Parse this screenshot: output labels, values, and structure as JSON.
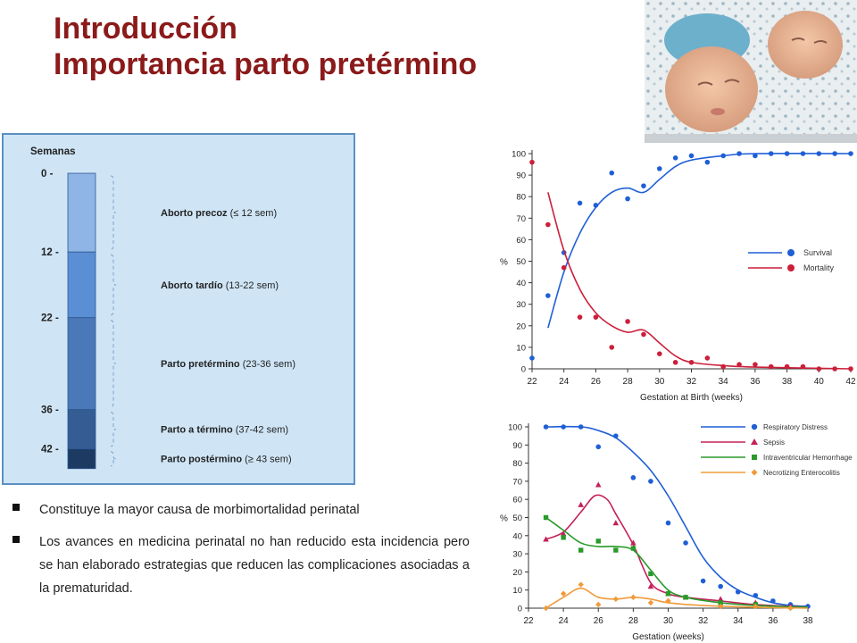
{
  "slide": {
    "title_line1": "Introducción",
    "title_line2": "Importancia parto pretérmino",
    "bullets": [
      "Constituye la mayor causa de morbimortalidad perinatal",
      "Los avances en medicina perinatal no han reducido esta incidencia pero se han elaborado estrategias que reducen las complicaciones asociadas a la prematuridad."
    ]
  },
  "timeline": {
    "header": "Semanas",
    "ticks": [
      {
        "label": "0  -",
        "week": 0
      },
      {
        "label": "12 -",
        "week": 12
      },
      {
        "label": "22 -",
        "week": 22
      },
      {
        "label": "36 -",
        "week": 36
      },
      {
        "label": "42 -",
        "week": 42
      }
    ],
    "segments": [
      {
        "bold": "Aborto precoz",
        "rest": " (≤ 12 sem)",
        "start": 0,
        "end": 12,
        "color": "#8fb4e6"
      },
      {
        "bold": "Aborto tardío",
        "rest": " (13-22 sem)",
        "start": 12,
        "end": 22,
        "color": "#5a8fd6"
      },
      {
        "bold": "Parto pretérmino",
        "rest": " (23-36 sem)",
        "start": 22,
        "end": 36,
        "color": "#4a78b8"
      },
      {
        "bold": "Parto a término",
        "rest": " (37-42 sem)",
        "start": 36,
        "end": 42,
        "color": "#335d93"
      },
      {
        "bold": "Parto postérmino",
        "rest": " (≥ 43 sem)",
        "start": 42,
        "end": 45,
        "color": "#1d3a63"
      }
    ]
  },
  "chart_data": [
    {
      "type": "line",
      "xlabel": "Gestation at Birth (weeks)",
      "ylabel": "%",
      "xlim": [
        22,
        42
      ],
      "ylim": [
        0,
        100
      ],
      "xticks": [
        22,
        24,
        26,
        28,
        30,
        32,
        34,
        36,
        38,
        40,
        42
      ],
      "yticks": [
        0,
        10,
        20,
        30,
        40,
        50,
        60,
        70,
        80,
        90,
        100
      ],
      "legend_position": "right",
      "series": [
        {
          "name": "Survival",
          "color": "#1f5fd6",
          "points": [
            [
              22,
              5
            ],
            [
              23,
              34
            ],
            [
              24,
              54
            ],
            [
              25,
              77
            ],
            [
              26,
              76
            ],
            [
              27,
              91
            ],
            [
              28,
              79
            ],
            [
              29,
              85
            ],
            [
              30,
              93
            ],
            [
              31,
              98
            ],
            [
              32,
              99
            ],
            [
              33,
              96
            ],
            [
              34,
              99
            ],
            [
              35,
              100
            ],
            [
              36,
              99
            ],
            [
              37,
              100
            ],
            [
              38,
              100
            ],
            [
              39,
              100
            ],
            [
              40,
              100
            ],
            [
              41,
              100
            ],
            [
              42,
              100
            ]
          ],
          "curve": [
            [
              23,
              19
            ],
            [
              24,
              45
            ],
            [
              25,
              63
            ],
            [
              26,
              75
            ],
            [
              27,
              82
            ],
            [
              28,
              84
            ],
            [
              29,
              82
            ],
            [
              30,
              88
            ],
            [
              31,
              94
            ],
            [
              32,
              97
            ],
            [
              34,
              99
            ],
            [
              36,
              100
            ],
            [
              42,
              100
            ]
          ]
        },
        {
          "name": "Mortality",
          "color": "#cc1f3a",
          "points": [
            [
              22,
              96
            ],
            [
              23,
              67
            ],
            [
              24,
              47
            ],
            [
              25,
              24
            ],
            [
              26,
              24
            ],
            [
              27,
              10
            ],
            [
              28,
              22
            ],
            [
              29,
              16
            ],
            [
              30,
              7
            ],
            [
              31,
              3
            ],
            [
              32,
              3
            ],
            [
              33,
              5
            ],
            [
              34,
              1
            ],
            [
              35,
              2
            ],
            [
              36,
              2
            ],
            [
              37,
              1
            ],
            [
              38,
              1
            ],
            [
              39,
              1
            ],
            [
              40,
              0
            ],
            [
              41,
              0
            ],
            [
              42,
              0
            ]
          ],
          "curve": [
            [
              23,
              82
            ],
            [
              24,
              55
            ],
            [
              25,
              37
            ],
            [
              26,
              26
            ],
            [
              27,
              20
            ],
            [
              28,
              17
            ],
            [
              29,
              18
            ],
            [
              30,
              12
            ],
            [
              31,
              6
            ],
            [
              32,
              3
            ],
            [
              34,
              1.5
            ],
            [
              36,
              0.8
            ],
            [
              42,
              0
            ]
          ]
        }
      ]
    },
    {
      "type": "line",
      "xlabel": "Gestation (weeks)",
      "ylabel": "%",
      "xlim": [
        22,
        38
      ],
      "ylim": [
        0,
        100
      ],
      "xticks": [
        22,
        24,
        26,
        28,
        30,
        32,
        34,
        36,
        38
      ],
      "yticks": [
        0,
        10,
        20,
        30,
        40,
        50,
        60,
        70,
        80,
        90,
        100
      ],
      "legend_position": "top-right",
      "series": [
        {
          "name": "Respiratory Distress",
          "color": "#1f5fd6",
          "marker": "circle",
          "points": [
            [
              23,
              100
            ],
            [
              24,
              100
            ],
            [
              25,
              100
            ],
            [
              26,
              89
            ],
            [
              27,
              95
            ],
            [
              28,
              72
            ],
            [
              29,
              70
            ],
            [
              30,
              47
            ],
            [
              31,
              36
            ],
            [
              32,
              15
            ],
            [
              33,
              12
            ],
            [
              34,
              9
            ],
            [
              35,
              7
            ],
            [
              36,
              4
            ],
            [
              37,
              2
            ],
            [
              38,
              1
            ]
          ],
          "curve": [
            [
              23,
              100
            ],
            [
              25,
              100
            ],
            [
              26,
              98
            ],
            [
              27,
              94
            ],
            [
              28,
              86
            ],
            [
              29,
              76
            ],
            [
              30,
              62
            ],
            [
              31,
              45
            ],
            [
              32,
              28
            ],
            [
              33,
              17
            ],
            [
              34,
              10
            ],
            [
              35,
              6
            ],
            [
              36,
              3
            ],
            [
              37,
              1.5
            ],
            [
              38,
              1
            ]
          ]
        },
        {
          "name": "Sepsis",
          "color": "#c4205a",
          "marker": "triangle",
          "points": [
            [
              23,
              38
            ],
            [
              24,
              41
            ],
            [
              25,
              57
            ],
            [
              26,
              68
            ],
            [
              27,
              47
            ],
            [
              28,
              36
            ],
            [
              29,
              12
            ],
            [
              30,
              8
            ],
            [
              31,
              6
            ],
            [
              33,
              5
            ],
            [
              35,
              3
            ],
            [
              37,
              1
            ]
          ],
          "curve": [
            [
              23,
              38
            ],
            [
              24,
              42
            ],
            [
              25,
              53
            ],
            [
              25.8,
              62
            ],
            [
              26.5,
              60
            ],
            [
              27,
              52
            ],
            [
              28,
              35
            ],
            [
              29,
              14
            ],
            [
              30,
              8
            ],
            [
              31,
              6
            ],
            [
              33,
              4
            ],
            [
              35,
              2
            ],
            [
              38,
              0.5
            ]
          ]
        },
        {
          "name": "Intraventricular Hemorrhage",
          "color": "#2a9a2a",
          "marker": "square",
          "points": [
            [
              23,
              50
            ],
            [
              24,
              39
            ],
            [
              25,
              32
            ],
            [
              26,
              37
            ],
            [
              27,
              32
            ],
            [
              28,
              33
            ],
            [
              29,
              19
            ],
            [
              30,
              8
            ],
            [
              31,
              6
            ],
            [
              33,
              3
            ],
            [
              35,
              2
            ]
          ],
          "curve": [
            [
              23,
              50
            ],
            [
              24,
              43
            ],
            [
              25,
              36
            ],
            [
              26,
              34
            ],
            [
              27,
              34
            ],
            [
              28,
              32
            ],
            [
              29,
              21
            ],
            [
              30,
              10
            ],
            [
              31,
              6
            ],
            [
              33,
              3
            ],
            [
              35,
              1.5
            ],
            [
              38,
              0.5
            ]
          ]
        },
        {
          "name": "Necrotizing Enterocolitis",
          "color": "#f09a3a",
          "marker": "diamond",
          "points": [
            [
              23,
              0
            ],
            [
              24,
              8
            ],
            [
              25,
              13
            ],
            [
              26,
              2
            ],
            [
              27,
              5
            ],
            [
              28,
              6
            ],
            [
              29,
              3
            ],
            [
              30,
              4
            ],
            [
              33,
              1
            ],
            [
              35,
              1
            ],
            [
              37,
              0
            ]
          ],
          "curve": [
            [
              23,
              0
            ],
            [
              24,
              6
            ],
            [
              25,
              11
            ],
            [
              26,
              6
            ],
            [
              27,
              5
            ],
            [
              28,
              6
            ],
            [
              29,
              5
            ],
            [
              30,
              3
            ],
            [
              32,
              1.5
            ],
            [
              35,
              0.5
            ],
            [
              38,
              0
            ]
          ]
        }
      ]
    }
  ]
}
